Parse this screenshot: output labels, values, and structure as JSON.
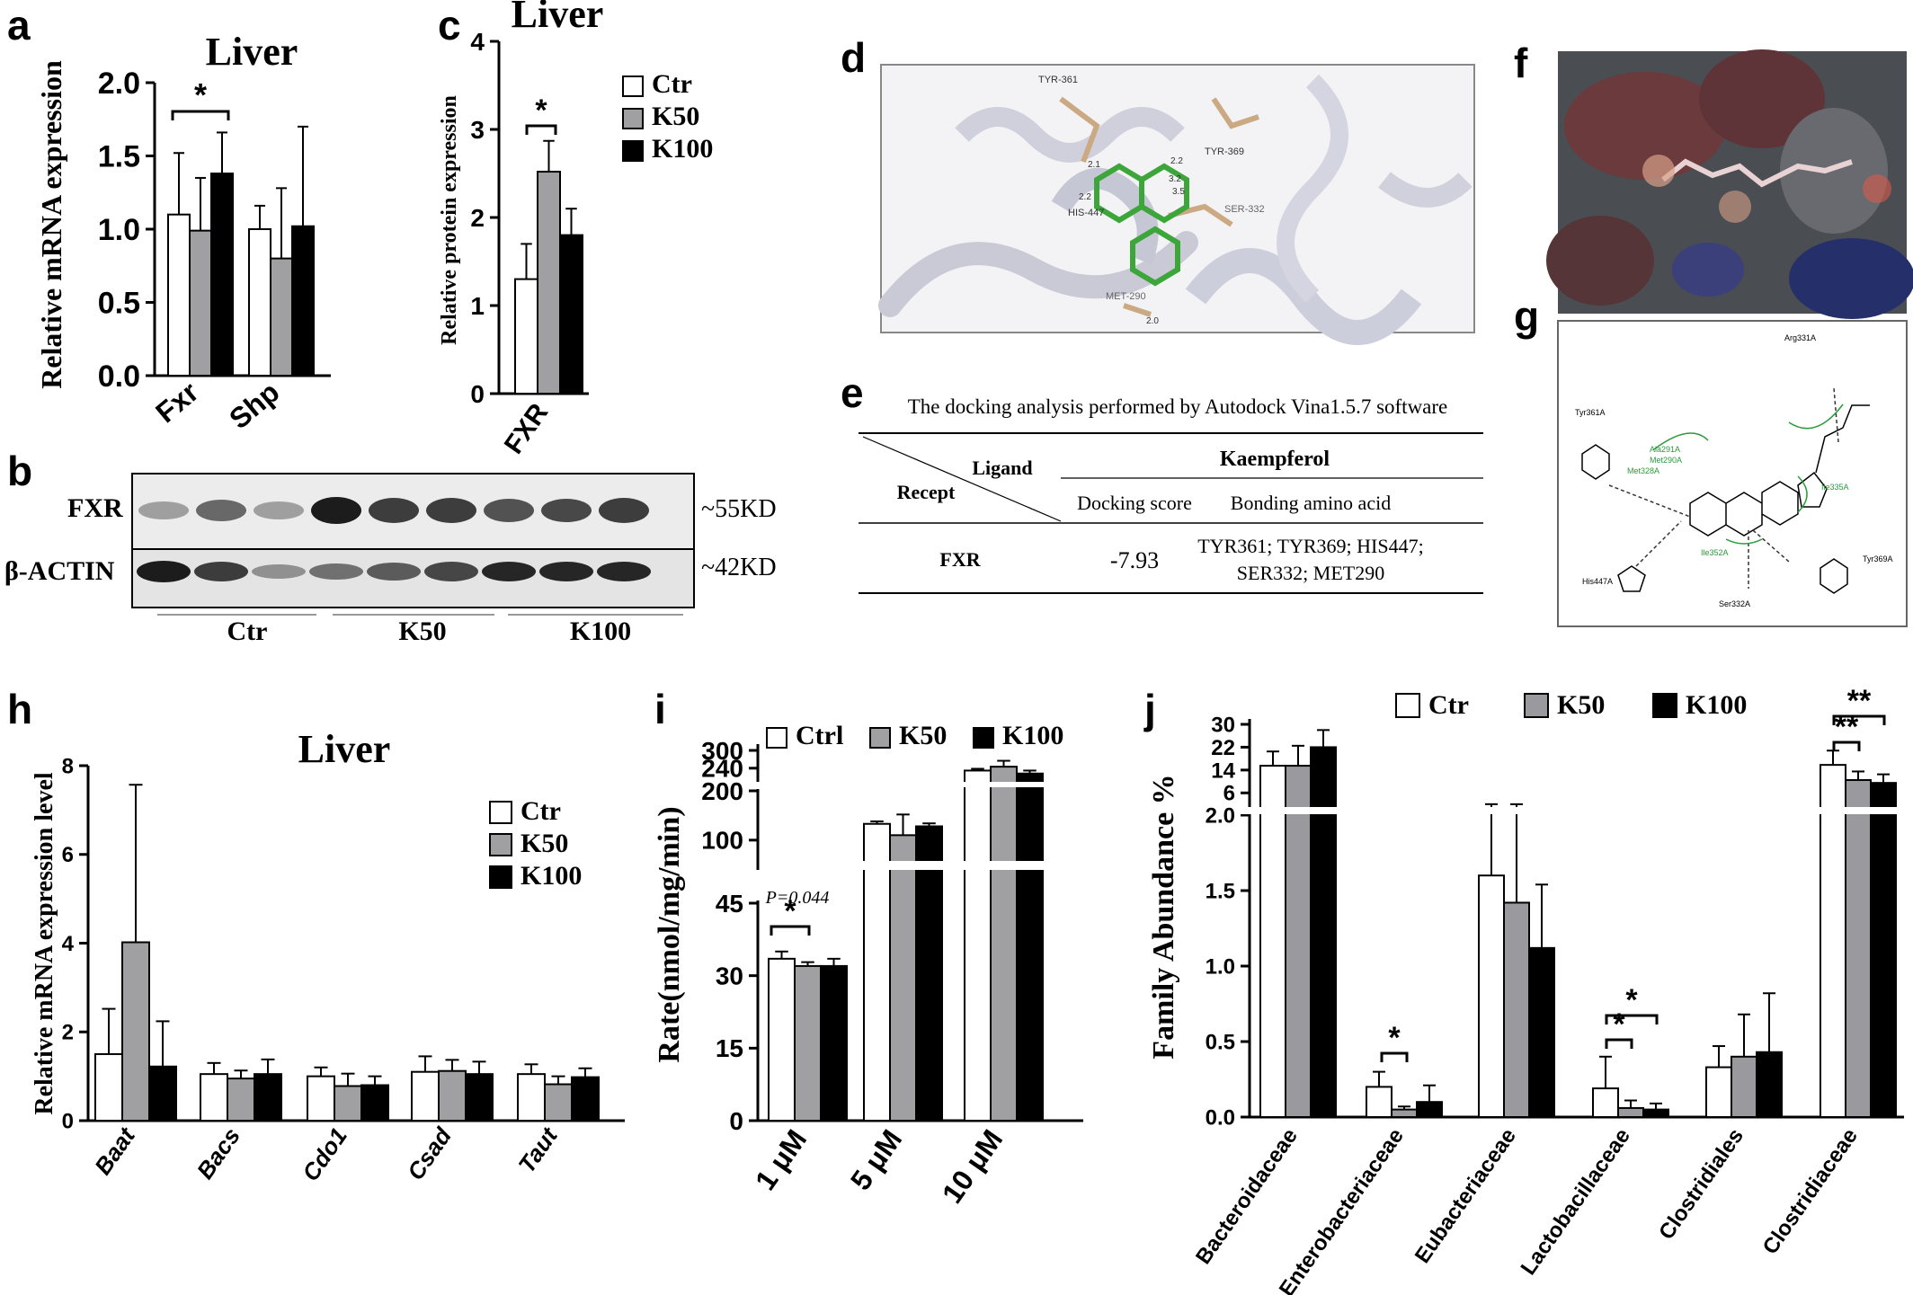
{
  "panels": {
    "a": "a",
    "b": "b",
    "c": "c",
    "d": "d",
    "e": "e",
    "f": "f",
    "g": "g",
    "h": "h",
    "i": "i",
    "j": "j"
  },
  "colors": {
    "ctr": "#ffffff",
    "k50": "#a0a0a3",
    "k100": "#000000",
    "k100_c": "#2e2e2e",
    "k50_j": "#9a9a9e"
  },
  "chart_data": [
    {
      "panel": "a",
      "type": "bar",
      "title": "Liver",
      "ylabel": "Relative mRNA expression",
      "categories": [
        "Fxr",
        "Shp"
      ],
      "ylim": [
        0,
        2.0
      ],
      "yticks": [
        "0.0",
        "0.5",
        "1.0",
        "1.5",
        "2.0"
      ],
      "series": [
        {
          "name": "Ctr",
          "values": [
            1.1,
            1.0
          ],
          "errors": [
            0.42,
            0.16
          ]
        },
        {
          "name": "K50",
          "values": [
            0.99,
            0.8
          ],
          "errors": [
            0.36,
            0.48
          ]
        },
        {
          "name": "K100",
          "values": [
            1.38,
            1.02
          ],
          "errors": [
            0.28,
            0.68
          ]
        }
      ],
      "annotations": [
        "*"
      ]
    },
    {
      "panel": "c",
      "type": "bar",
      "title": "Liver",
      "ylabel": "Relative protein expression",
      "categories": [
        "FXR"
      ],
      "ylim": [
        0,
        4
      ],
      "yticks": [
        "0",
        "1",
        "2",
        "3",
        "4"
      ],
      "series": [
        {
          "name": "Ctr",
          "values": [
            1.3
          ],
          "errors": [
            0.4
          ]
        },
        {
          "name": "K50",
          "values": [
            2.52
          ],
          "errors": [
            0.35
          ]
        },
        {
          "name": "K100",
          "values": [
            1.8
          ],
          "errors": [
            0.3
          ]
        }
      ],
      "legend": [
        "Ctr",
        "K50",
        "K100"
      ],
      "annotations": [
        "*"
      ]
    },
    {
      "panel": "h",
      "type": "bar",
      "title": "Liver",
      "ylabel": "Relative mRNA expression level",
      "categories": [
        "Baat",
        "Bacs",
        "Cdo1",
        "Csad",
        "Taut"
      ],
      "ylim": [
        0,
        8
      ],
      "yticks": [
        "0",
        "2",
        "4",
        "6",
        "8"
      ],
      "series": [
        {
          "name": "Ctr",
          "values": [
            1.5,
            1.05,
            1.0,
            1.1,
            1.05
          ],
          "errors": [
            1.02,
            0.25,
            0.2,
            0.35,
            0.22
          ]
        },
        {
          "name": "K50",
          "values": [
            4.02,
            0.95,
            0.78,
            1.12,
            0.82
          ],
          "errors": [
            3.55,
            0.18,
            0.28,
            0.25,
            0.18
          ]
        },
        {
          "name": "K100",
          "values": [
            1.22,
            1.05,
            0.8,
            1.05,
            0.98
          ],
          "errors": [
            1.02,
            0.33,
            0.2,
            0.28,
            0.2
          ]
        }
      ],
      "legend": [
        "Ctr",
        "K50",
        "K100"
      ]
    },
    {
      "panel": "i",
      "type": "bar",
      "ylabel": "Rate(nmol/mg/min)",
      "categories": [
        "1 μM",
        "5 μM",
        "10 μM"
      ],
      "yticks": [
        "0",
        "15",
        "30",
        "45",
        "100",
        "200",
        "240",
        "300"
      ],
      "series": [
        {
          "name": "Ctrl",
          "values": [
            33.5,
            133,
            232
          ],
          "errors": [
            1.5,
            5,
            6
          ]
        },
        {
          "name": "K50",
          "values": [
            32,
            110,
            245
          ],
          "errors": [
            0.8,
            42,
            20
          ]
        },
        {
          "name": "K100",
          "values": [
            32,
            128,
            222
          ],
          "errors": [
            1.5,
            6,
            10
          ]
        }
      ],
      "legend": [
        "Ctrl",
        "K50",
        "K100"
      ],
      "annotations": [
        "P=0.044",
        "*"
      ]
    },
    {
      "panel": "j",
      "type": "bar",
      "ylabel": "Family Abundance %",
      "categories": [
        "Bacteroidaceae",
        "Enterobacteriaceae",
        "Eubacteriaceae",
        "Lactobacillaceae",
        "Clostridiales",
        "Clostridiaceae"
      ],
      "yticks": [
        "0.0",
        "0.5",
        "1.0",
        "1.5",
        "2.0",
        "6",
        "14",
        "22",
        "30"
      ],
      "series": [
        {
          "name": "Ctr",
          "values": [
            15.5,
            0.2,
            1.6,
            0.19,
            0.33,
            15.8
          ],
          "errors": [
            5,
            0.1,
            0.45,
            0.21,
            0.14,
            5
          ]
        },
        {
          "name": "K50",
          "values": [
            15.5,
            0.05,
            1.42,
            0.06,
            0.4,
            10.5
          ],
          "errors": [
            7,
            0.02,
            0.62,
            0.05,
            0.28,
            3
          ]
        },
        {
          "name": "K100",
          "values": [
            22,
            0.1,
            1.12,
            0.05,
            0.43,
            9.5
          ],
          "errors": [
            6,
            0.11,
            0.42,
            0.04,
            0.39,
            3
          ]
        }
      ],
      "legend": [
        "Ctr",
        "K50",
        "K100"
      ],
      "annotations": [
        "*",
        "*",
        "*",
        "**",
        "**"
      ]
    }
  ],
  "blot": {
    "rows": [
      {
        "label": "FXR",
        "size": "~55KD"
      },
      {
        "label": "β-ACTIN",
        "size": "~42KD"
      }
    ],
    "groups": [
      "Ctr",
      "K50",
      "K100"
    ]
  },
  "docking": {
    "caption": "The docking analysis performed by Autodock Vina1.5.7 software",
    "ligand_header": "Ligand",
    "receptor_header": "Recept",
    "compound": "Kaempferol",
    "col1": "Docking score",
    "col2": "Bonding amino acid",
    "row_label": "FXR",
    "score": "-7.93",
    "residues_line1": "TYR361; TYR369; HIS447;",
    "residues_line2": "SER332; MET290"
  },
  "structure_labels": [
    "TYR-361",
    "TYR-369",
    "HIS-447",
    "SER-332",
    "MET-290",
    "2.1",
    "2.2",
    "2.2",
    "3.2",
    "3.5",
    "2.0"
  ],
  "interaction_labels": [
    "Arg331A",
    "Tyr361A",
    "Ala291A",
    "Met290A",
    "Met328A",
    "Ile335A",
    "Ile352A",
    "His447A",
    "Ser332A",
    "Tyr369A"
  ]
}
